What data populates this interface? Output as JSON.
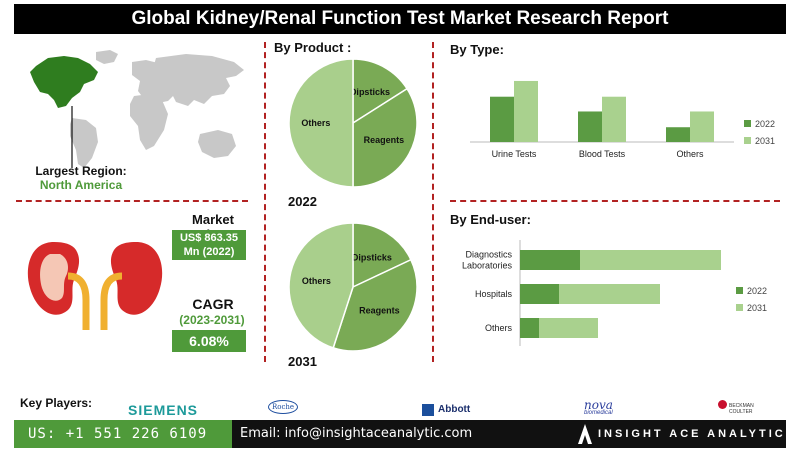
{
  "header": {
    "title": "Global Kidney/Renal Function Test Market Research Report"
  },
  "region": {
    "label": "Largest Region:",
    "value": "North America"
  },
  "market_size": {
    "label": "Market Size:",
    "value_line1": "US$ 863.35",
    "value_line2": "Mn (2022)"
  },
  "cagr": {
    "label": "CAGR",
    "period": "(2023-2031)",
    "value": "6.08%"
  },
  "sections": {
    "by_product": "By  Product :",
    "by_type": "By Type:",
    "by_enduser": "By End-user:"
  },
  "colors": {
    "dark_green": "#5b9b43",
    "light_green": "#a9d18e",
    "pie_dark": "#7aaa55",
    "pie_light": "#a9cf8c",
    "accent_red": "#b22222"
  },
  "chart_data": [
    {
      "type": "pie",
      "title": "2022",
      "labels": [
        "Dipsticks",
        "Reagents",
        "Others"
      ],
      "values": [
        16,
        34,
        50
      ]
    },
    {
      "type": "pie",
      "title": "2031",
      "labels": [
        "Dipsticks",
        "Reagents",
        "Others"
      ],
      "values": [
        18,
        37,
        45
      ]
    },
    {
      "type": "bar",
      "orientation": "vertical",
      "categories": [
        "Urine Tests",
        "Blood Tests",
        "Others"
      ],
      "series": [
        {
          "name": "2022",
          "values": [
            46,
            31,
            15
          ]
        },
        {
          "name": "2031",
          "values": [
            62,
            46,
            31
          ]
        }
      ],
      "legend": "right"
    },
    {
      "type": "bar",
      "orientation": "horizontal",
      "categories": [
        "Diagnostics Laboratories",
        "Hospitals",
        "Others"
      ],
      "series": [
        {
          "name": "2022",
          "values": [
            60,
            39,
            19
          ]
        },
        {
          "name": "2031",
          "values": [
            141,
            101,
            59
          ]
        }
      ],
      "legend": "right"
    }
  ],
  "pie_years": {
    "p2022": "2022",
    "p2031": "2031"
  },
  "key_players": {
    "label": "Key Players:",
    "logos": [
      "SIEMENS",
      "Roche",
      "Abbott",
      "nova",
      "biomedical",
      "BECKMAN",
      "COULTER"
    ]
  },
  "footer": {
    "phone": "US: +1 551 226 6109",
    "email": "Email: info@insightaceanalytic.com",
    "brand": "INSIGHT ACE ANALYTIC"
  }
}
